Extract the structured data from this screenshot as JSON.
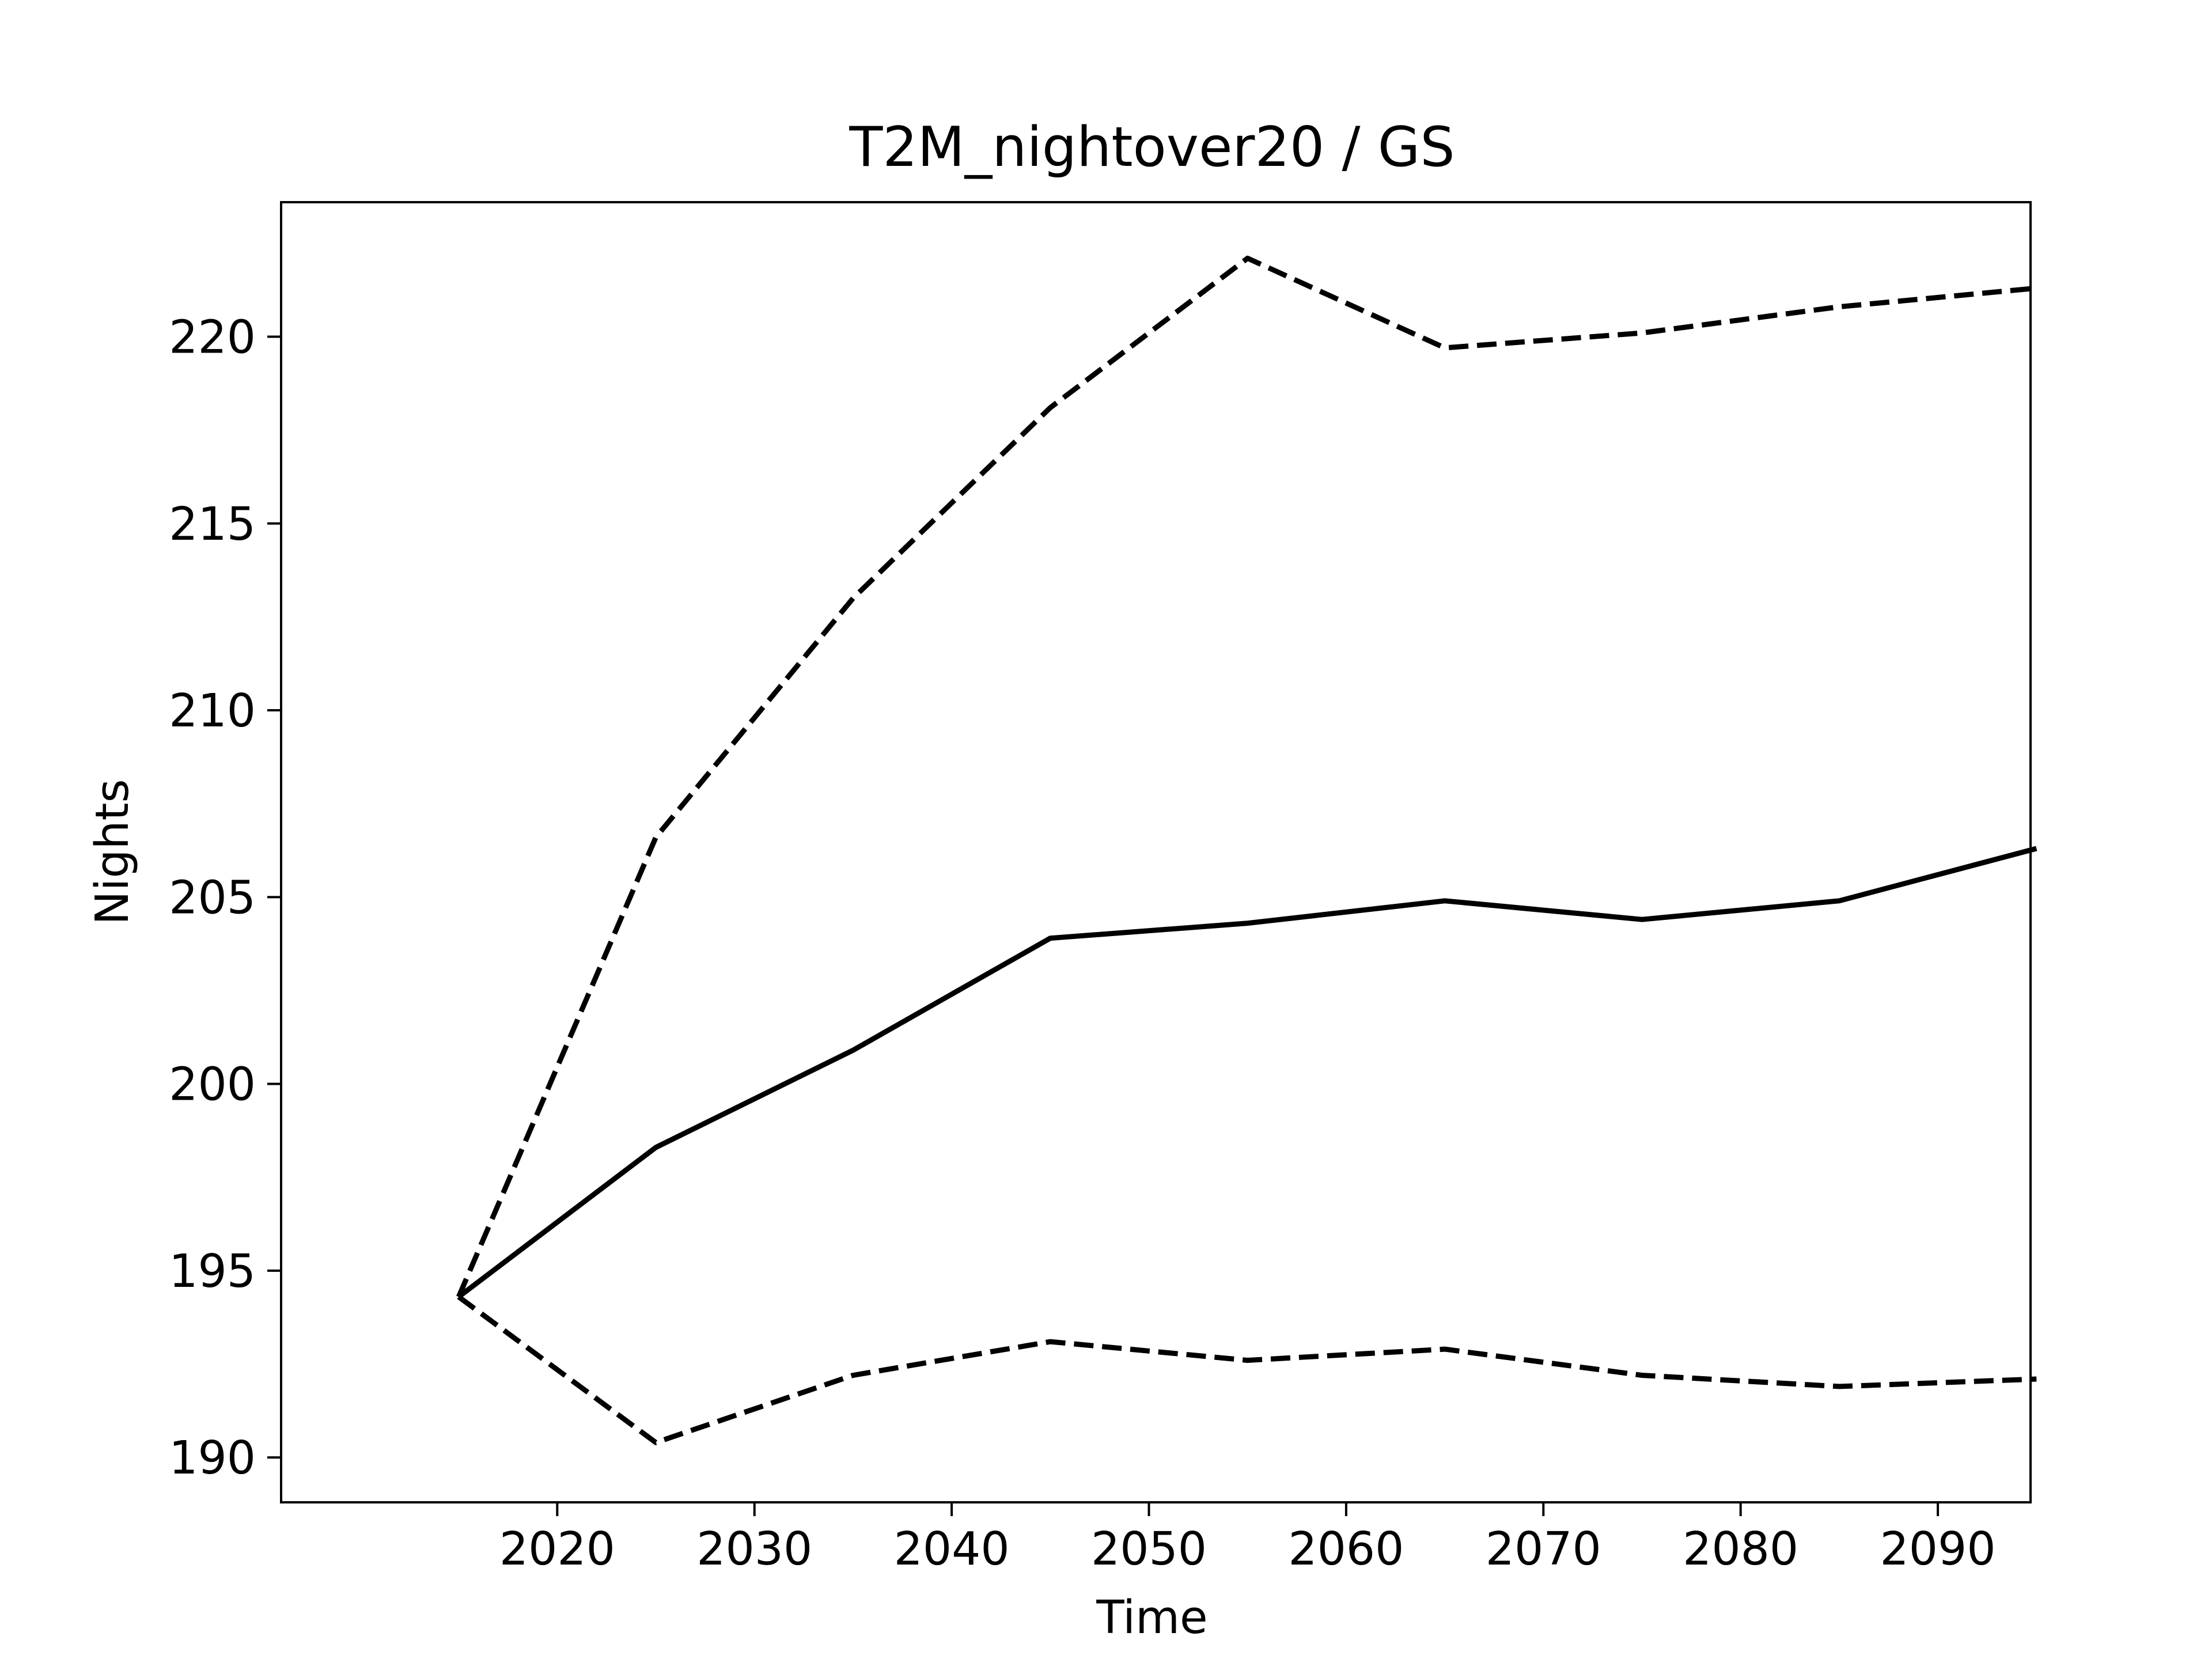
{
  "chart_data": {
    "type": "line",
    "title": "T2M_nightover20 / GS",
    "xlabel": "Time",
    "ylabel": "Nights",
    "x": [
      2015,
      2025,
      2035,
      2045,
      2055,
      2065,
      2075,
      2085,
      2095
    ],
    "xlim": [
      2006,
      2094.7
    ],
    "ylim": [
      188.8,
      223.6
    ],
    "xticks": [
      2020,
      2030,
      2040,
      2050,
      2060,
      2070,
      2080,
      2090
    ],
    "yticks": [
      190,
      195,
      200,
      205,
      210,
      215,
      220
    ],
    "grid": false,
    "legend": false,
    "color": "#000000",
    "series": [
      {
        "style": "solid",
        "values": [
          194.3,
          198.3,
          200.9,
          203.9,
          204.3,
          204.9,
          204.4,
          204.9,
          206.3
        ]
      },
      {
        "style": "dashed",
        "values": [
          194.3,
          206.6,
          213.0,
          218.1,
          222.1,
          219.7,
          220.1,
          220.8,
          221.3
        ]
      },
      {
        "style": "dashed",
        "values": [
          194.3,
          190.4,
          192.2,
          193.1,
          192.6,
          192.9,
          192.2,
          191.9,
          192.1
        ]
      }
    ]
  }
}
